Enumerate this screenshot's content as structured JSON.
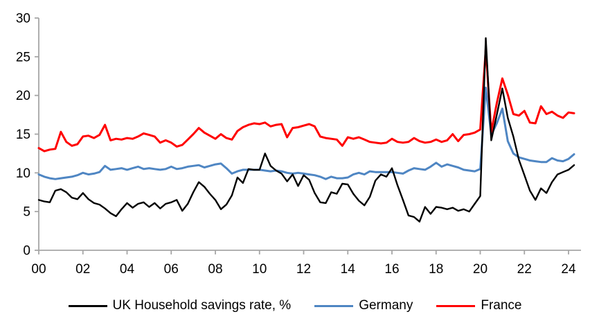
{
  "chart_data": {
    "type": "line",
    "title": "",
    "xlabel": "",
    "ylabel": "",
    "x_start_year": 2000,
    "x_step_years": 0.25,
    "xlim": [
      2000,
      2024.6
    ],
    "ylim": [
      0,
      30
    ],
    "y_ticks": [
      0,
      5,
      10,
      15,
      20,
      25,
      30
    ],
    "y_tick_labels": [
      "0",
      "5",
      "10",
      "15",
      "20",
      "25",
      "30"
    ],
    "x_tick_years": [
      2000,
      2002,
      2004,
      2006,
      2008,
      2010,
      2012,
      2014,
      2016,
      2018,
      2020,
      2022,
      2024
    ],
    "x_tick_labels": [
      "00",
      "02",
      "04",
      "06",
      "08",
      "10",
      "12",
      "14",
      "16",
      "18",
      "20",
      "22",
      "24"
    ],
    "grid": false,
    "legend_position": "bottom",
    "axis_color": "#a6a6a6",
    "series": [
      {
        "name": "UK Household savings rate, %",
        "color": "#000000",
        "values": [
          6.5,
          6.3,
          6.2,
          7.7,
          7.9,
          7.5,
          6.8,
          6.6,
          7.4,
          6.6,
          6.1,
          5.9,
          5.4,
          4.8,
          4.4,
          5.3,
          6.1,
          5.5,
          6.0,
          6.2,
          5.6,
          6.1,
          5.4,
          6.0,
          6.2,
          6.5,
          5.1,
          6.0,
          7.5,
          8.8,
          8.2,
          7.3,
          6.5,
          5.3,
          5.9,
          7.1,
          9.4,
          8.7,
          10.5,
          10.4,
          10.4,
          12.5,
          10.9,
          10.3,
          9.9,
          8.9,
          9.8,
          8.3,
          9.7,
          9.1,
          7.4,
          6.2,
          6.1,
          7.5,
          7.3,
          8.6,
          8.5,
          7.3,
          6.4,
          5.8,
          6.9,
          9.0,
          9.8,
          9.5,
          10.6,
          8.4,
          6.5,
          4.5,
          4.3,
          3.7,
          5.6,
          4.7,
          5.6,
          5.5,
          5.3,
          5.5,
          5.1,
          5.3,
          5.0,
          6.0,
          7.0,
          27.4,
          14.2,
          17.5,
          20.9,
          17.1,
          14.7,
          11.7,
          9.7,
          7.7,
          6.5,
          8.0,
          7.4,
          8.8,
          9.8,
          10.1,
          10.4,
          11.0
        ]
      },
      {
        "name": "Germany",
        "color": "#4f86c3",
        "values": [
          9.8,
          9.5,
          9.3,
          9.2,
          9.3,
          9.4,
          9.5,
          9.7,
          10.0,
          9.8,
          9.9,
          10.1,
          10.9,
          10.4,
          10.5,
          10.6,
          10.4,
          10.6,
          10.8,
          10.5,
          10.6,
          10.5,
          10.4,
          10.5,
          10.8,
          10.5,
          10.6,
          10.8,
          10.9,
          11.0,
          10.7,
          10.9,
          11.1,
          11.2,
          10.6,
          9.9,
          10.2,
          10.4,
          10.4,
          10.4,
          10.4,
          10.3,
          10.2,
          10.3,
          10.2,
          10.0,
          9.9,
          10.0,
          9.9,
          9.8,
          9.7,
          9.5,
          9.2,
          9.5,
          9.3,
          9.3,
          9.4,
          9.8,
          10.0,
          9.8,
          10.2,
          10.1,
          10.1,
          10.1,
          10.1,
          10.0,
          9.9,
          10.3,
          10.6,
          10.5,
          10.4,
          10.8,
          11.3,
          10.8,
          11.1,
          10.9,
          10.7,
          10.4,
          10.3,
          10.2,
          10.5,
          21.0,
          14.9,
          16.4,
          18.3,
          14.1,
          12.5,
          12.0,
          11.8,
          11.6,
          11.5,
          11.4,
          11.4,
          11.9,
          11.6,
          11.5,
          11.8,
          12.4
        ]
      },
      {
        "name": "France",
        "color": "#ff0000",
        "values": [
          13.2,
          12.8,
          13.0,
          13.1,
          15.3,
          14.0,
          13.5,
          13.7,
          14.7,
          14.8,
          14.5,
          14.9,
          16.2,
          14.2,
          14.4,
          14.3,
          14.5,
          14.4,
          14.7,
          15.1,
          14.9,
          14.7,
          13.9,
          14.2,
          13.9,
          13.4,
          13.6,
          14.3,
          15.0,
          15.8,
          15.2,
          14.8,
          14.4,
          15.0,
          14.5,
          14.3,
          15.4,
          15.9,
          16.2,
          16.4,
          16.3,
          16.5,
          16.0,
          16.2,
          16.3,
          14.6,
          15.8,
          15.9,
          16.1,
          16.3,
          16.0,
          14.7,
          14.5,
          14.4,
          14.3,
          13.5,
          14.6,
          14.4,
          14.6,
          14.3,
          14.0,
          13.9,
          13.8,
          13.9,
          14.4,
          14.0,
          13.9,
          14.0,
          14.5,
          14.1,
          13.9,
          14.0,
          14.3,
          14.0,
          14.2,
          15.0,
          14.1,
          14.9,
          15.0,
          15.2,
          15.6,
          26.0,
          15.3,
          19.0,
          22.2,
          20.1,
          17.6,
          17.4,
          18.0,
          16.5,
          16.4,
          18.6,
          17.6,
          17.9,
          17.4,
          17.1,
          17.8,
          17.7
        ]
      }
    ]
  }
}
